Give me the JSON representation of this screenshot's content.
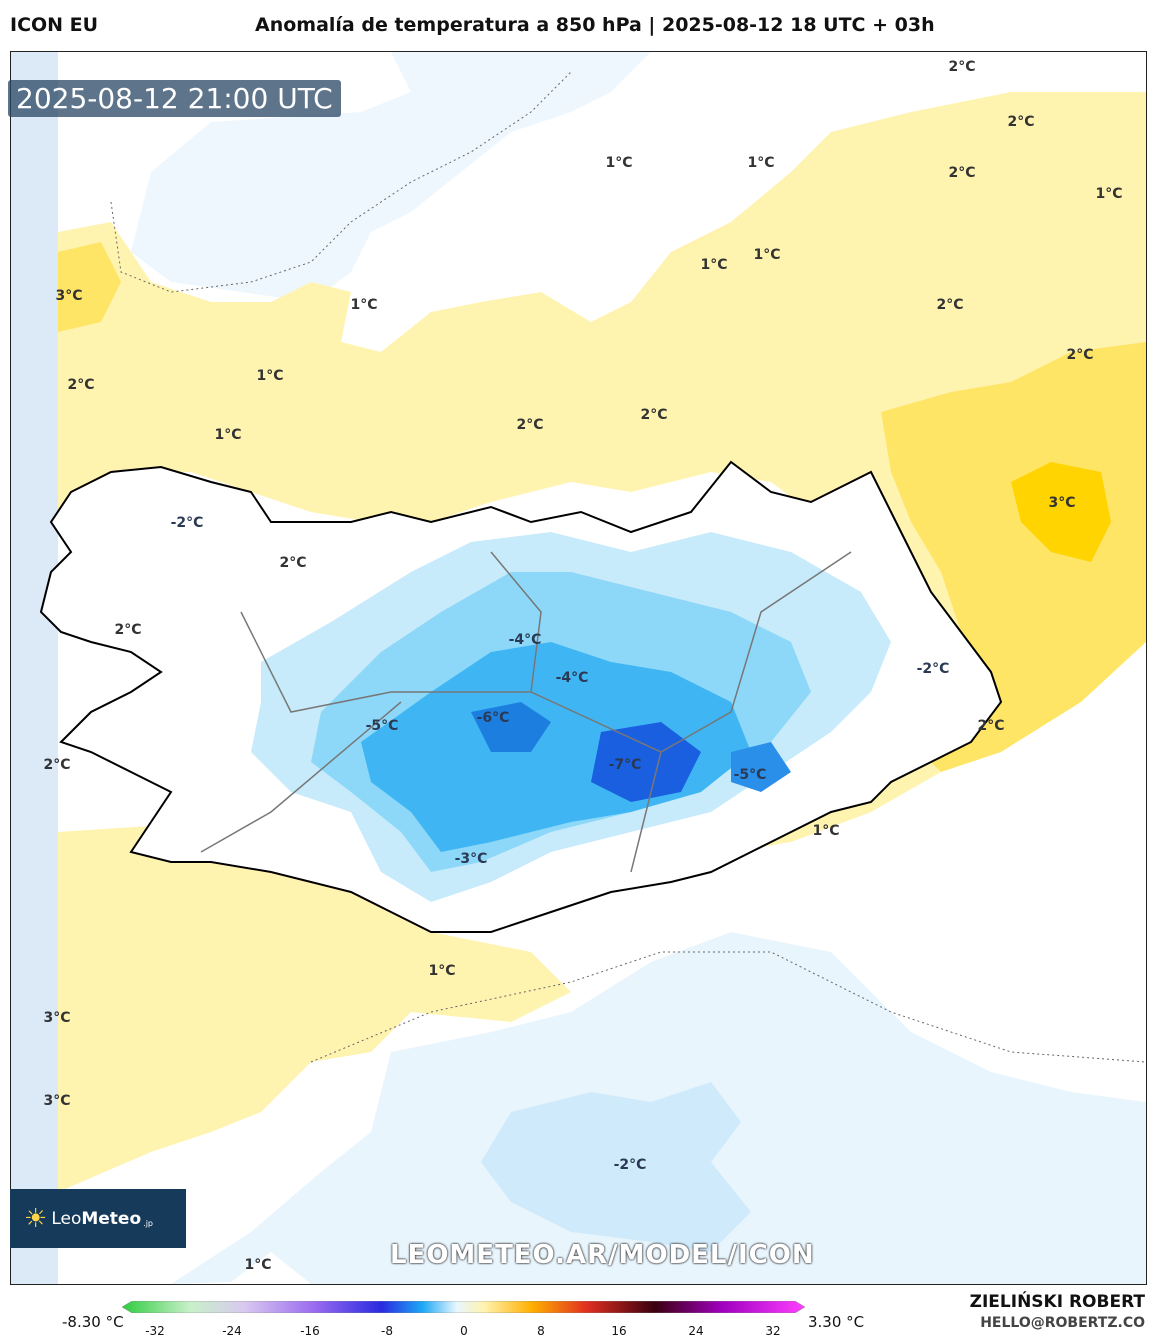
{
  "header": {
    "model": "ICON EU",
    "title": "Anomalía de temperatura a 850 hPa | 2025-08-12 18 UTC + 03h"
  },
  "map": {
    "valid_time": "2025-08-12 21:00 UTC",
    "watermark": "LEOMETEO.AR/MODEL/ICON",
    "logo": {
      "name_regular": "Leo",
      "name_bold": "Meteo",
      "suffix": ".jp"
    },
    "labels": [
      {
        "text": "2°C"
      },
      {
        "text": "2°C"
      },
      {
        "text": "2°C"
      },
      {
        "text": "1°C"
      },
      {
        "text": "1°C"
      },
      {
        "text": "1°C"
      },
      {
        "text": "1°C"
      },
      {
        "text": "1°C"
      },
      {
        "text": "3°C"
      },
      {
        "text": "1°C"
      },
      {
        "text": "2°C"
      },
      {
        "text": "2°C"
      },
      {
        "text": "1°C"
      },
      {
        "text": "1°C"
      },
      {
        "text": "2°C"
      },
      {
        "text": "2°C"
      },
      {
        "text": "2°C"
      },
      {
        "text": "3°C"
      },
      {
        "text": "-2°C"
      },
      {
        "text": "2°C"
      },
      {
        "text": "2°C"
      },
      {
        "text": "-4°C"
      },
      {
        "text": "-4°C"
      },
      {
        "text": "-2°C"
      },
      {
        "text": "-5°C"
      },
      {
        "text": "-6°C"
      },
      {
        "text": "2°C"
      },
      {
        "text": "2°C"
      },
      {
        "text": "-7°C"
      },
      {
        "text": "-5°C"
      },
      {
        "text": "1°C"
      },
      {
        "text": "-3°C"
      },
      {
        "text": "1°C"
      },
      {
        "text": "3°C"
      },
      {
        "text": "3°C"
      },
      {
        "text": "-2°C"
      },
      {
        "text": "1°C"
      }
    ]
  },
  "legend": {
    "min_label": "-8.30 °C",
    "max_label": "3.30 °C",
    "ticks": [
      "-32",
      "-24",
      "-16",
      "-8",
      "0",
      "8",
      "16",
      "24",
      "32"
    ],
    "colors": [
      "#2ecc40",
      "#c9f0c9",
      "#d8c8f0",
      "#9b6cf0",
      "#2a2ae0",
      "#1ea8f5",
      "#e8f6ff",
      "#fff3b0",
      "#ffb000",
      "#e03020",
      "#3a0010",
      "#a000c0",
      "#ff40ff"
    ]
  },
  "credits": {
    "author": "ZIELIŃSKI ROBERT",
    "email": "HELLO@ROBERTZ.CO"
  }
}
